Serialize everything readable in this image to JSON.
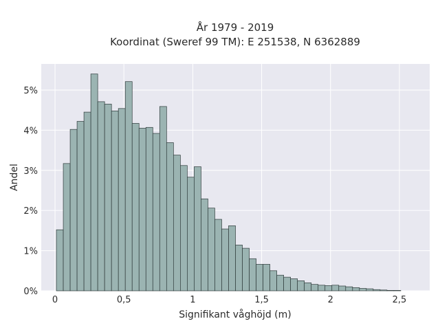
{
  "chart_data": {
    "type": "bar",
    "title": "År 1979 - 2019",
    "subtitle": "Koordinat (Sweref 99 TM): E 251538, N 6362889",
    "xlabel": "Signifikant våghöjd (m)",
    "ylabel": "Andel",
    "xlim": [
      -0.1,
      2.72
    ],
    "ylim": [
      0,
      5.65
    ],
    "x_ticks": [
      {
        "value": 0,
        "label": "0"
      },
      {
        "value": 0.5,
        "label": "0,5"
      },
      {
        "value": 1,
        "label": "1"
      },
      {
        "value": 1.5,
        "label": "1,5"
      },
      {
        "value": 2,
        "label": "2"
      },
      {
        "value": 2.5,
        "label": "2,5"
      }
    ],
    "y_ticks": [
      {
        "value": 0,
        "label": "0%"
      },
      {
        "value": 1,
        "label": "1%"
      },
      {
        "value": 2,
        "label": "2%"
      },
      {
        "value": 3,
        "label": "3%"
      },
      {
        "value": 4,
        "label": "4%"
      },
      {
        "value": 5,
        "label": "5%"
      }
    ],
    "grid": true,
    "bin_width": 0.05,
    "bin_start": 0.01,
    "values_percent": [
      1.52,
      3.17,
      4.02,
      4.22,
      4.45,
      5.4,
      4.71,
      4.65,
      4.48,
      4.54,
      5.21,
      4.17,
      4.05,
      4.07,
      3.92,
      4.59,
      3.69,
      3.38,
      3.12,
      2.83,
      3.09,
      2.29,
      2.06,
      1.78,
      1.54,
      1.62,
      1.14,
      1.06,
      0.8,
      0.66,
      0.66,
      0.5,
      0.39,
      0.34,
      0.3,
      0.25,
      0.2,
      0.16,
      0.14,
      0.13,
      0.14,
      0.12,
      0.1,
      0.08,
      0.06,
      0.05,
      0.03,
      0.02,
      0.01,
      0.01
    ],
    "colors": {
      "plot_background": "#e8e8f0",
      "grid": "#ffffff",
      "bar_fill": "#9bb4b2",
      "bar_edge": "#2e3a3a"
    }
  }
}
